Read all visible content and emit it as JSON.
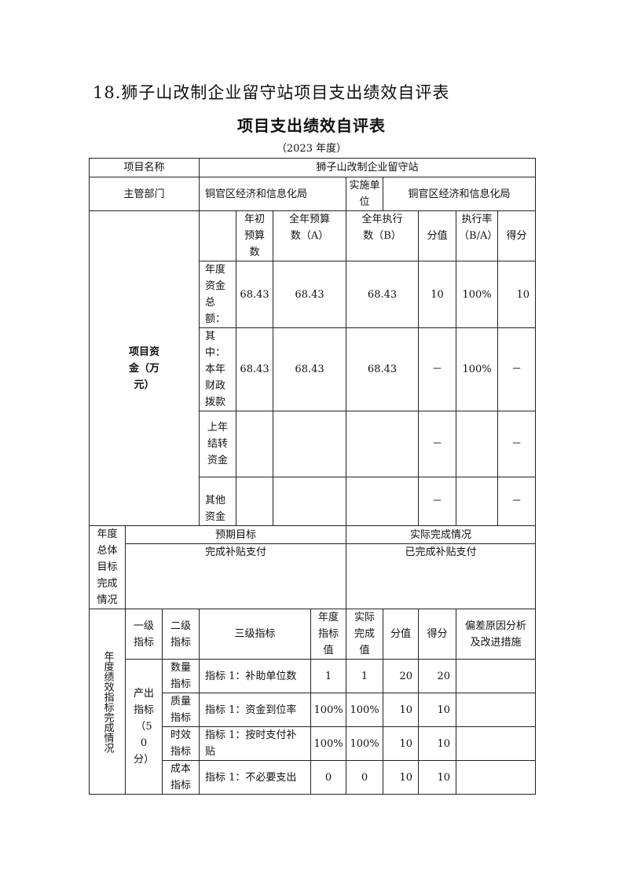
{
  "doc_title": "18.狮子山改制企业留守站项目支出绩效自评表",
  "table_title": "项目支出绩效自评表",
  "year": "（2023 年度）",
  "project": {
    "name_label": "项目名称",
    "name": "狮子山改制企业留守站"
  },
  "dept": {
    "label": "主管部门",
    "value": "铜官区经济和信息化局",
    "impl_label": "实施单位",
    "impl_value": "铜官区经济和信息化局"
  },
  "funds": {
    "label": "项目资金（万元）",
    "headers": [
      "",
      "年初预算数",
      "全年预算数（A）",
      "全年执行数（B）",
      "分值",
      "执行率（B/A）",
      "得分"
    ],
    "rows": [
      {
        "label": "年度资金总额：",
        "initial": "68.43",
        "budget": "68.43",
        "executed": "68.43",
        "score_value": "10",
        "rate": "100%",
        "score": "10"
      },
      {
        "label": "其中：本年财政拨款",
        "initial": "68.43",
        "budget": "68.43",
        "executed": "68.43",
        "score_value": "－",
        "rate": "100%",
        "score": "－"
      },
      {
        "label": "上年结转资金",
        "initial": "",
        "budget": "",
        "executed": "",
        "score_value": "－",
        "rate": "",
        "score": "－"
      },
      {
        "label": "其他资金",
        "initial": "",
        "budget": "",
        "executed": "",
        "score_value": "－",
        "rate": "",
        "score": "－"
      }
    ]
  },
  "goals": {
    "label": "年度总体目标完成情况",
    "expected_label": "预期目标",
    "actual_label": "实际完成情况",
    "expected": "完成补贴支付",
    "actual": "已完成补贴支付"
  },
  "indicators": {
    "label": "年度绩效指标完成情况",
    "headers": [
      "一级指标",
      "二级指标",
      "三级指标",
      "年度指标值",
      "实际完成值",
      "分值",
      "得分",
      "偏差原因分析及改进措施"
    ],
    "level1": "产出指标（50分）",
    "rows": [
      {
        "level2": "数量指标",
        "level3": "指标 1：补助单位数",
        "target": "1",
        "actual": "1",
        "score_value": "20",
        "score": "20",
        "note": ""
      },
      {
        "level2": "质量指标",
        "level3": "指标 1：资金到位率",
        "target": "100%",
        "actual": "100%",
        "score_value": "10",
        "score": "10",
        "note": ""
      },
      {
        "level2": "时效指标",
        "level3": "指标 1：按时支付补贴",
        "target": "100%",
        "actual": "100%",
        "score_value": "10",
        "score": "10",
        "note": ""
      },
      {
        "level2": "成本指标",
        "level3": "指标 1：不必要支出",
        "target": "0",
        "actual": "0",
        "score_value": "10",
        "score": "10",
        "note": ""
      }
    ]
  }
}
